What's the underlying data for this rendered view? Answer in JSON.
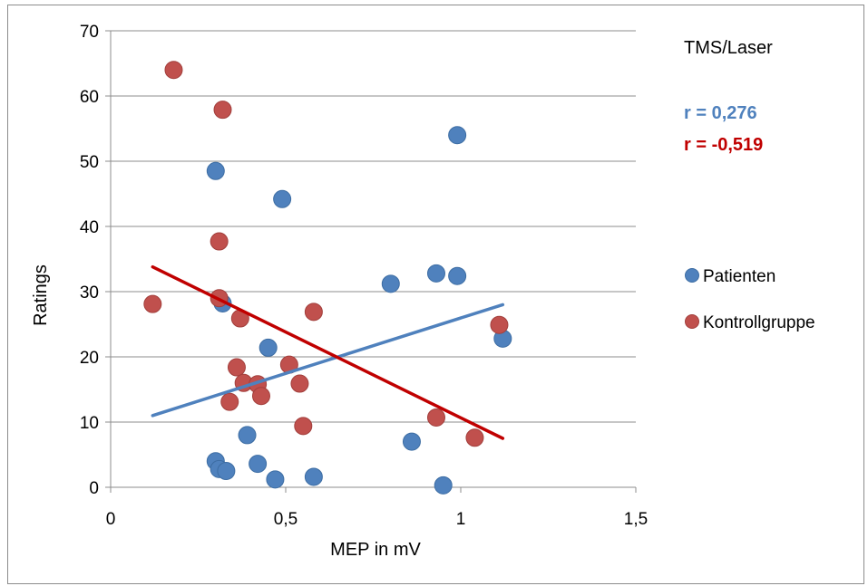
{
  "chart_data": {
    "type": "scatter",
    "title": "TMS/Laser",
    "xlabel": "MEP in mV",
    "ylabel": "Ratings",
    "xlim": [
      0,
      1.5
    ],
    "ylim": [
      0,
      70
    ],
    "x_ticks": [
      "0",
      "0,5",
      "1",
      "1,5"
    ],
    "y_ticks": [
      "0",
      "10",
      "20",
      "30",
      "40",
      "50",
      "60",
      "70"
    ],
    "grid": "horizontal",
    "legend_position": "right",
    "annotations": [
      {
        "text": "r = 0,276",
        "color": "#4f81bd"
      },
      {
        "text": "r = -0,519",
        "color": "#c00000"
      }
    ],
    "series": [
      {
        "name": "Patienten",
        "color": "#4f81bd",
        "trend_color": "#4f81bd",
        "points": [
          [
            0.3,
            48.5
          ],
          [
            0.32,
            28.2
          ],
          [
            0.49,
            44.2
          ],
          [
            0.99,
            54.0
          ],
          [
            0.93,
            32.8
          ],
          [
            0.99,
            32.4
          ],
          [
            0.8,
            31.2
          ],
          [
            1.12,
            22.8
          ],
          [
            0.45,
            21.4
          ],
          [
            0.39,
            8.0
          ],
          [
            0.86,
            7.0
          ],
          [
            0.3,
            4.0
          ],
          [
            0.31,
            2.8
          ],
          [
            0.33,
            2.5
          ],
          [
            0.42,
            3.6
          ],
          [
            0.47,
            1.2
          ],
          [
            0.58,
            1.6
          ],
          [
            0.95,
            0.3
          ]
        ],
        "trendline": [
          [
            0.12,
            11.0
          ],
          [
            1.12,
            28.0
          ]
        ]
      },
      {
        "name": "Kontrollgruppe",
        "color": "#c0504d",
        "trend_color": "#c00000",
        "points": [
          [
            0.18,
            64.0
          ],
          [
            0.32,
            57.9
          ],
          [
            0.31,
            37.7
          ],
          [
            0.12,
            28.1
          ],
          [
            0.31,
            29.0
          ],
          [
            0.37,
            25.9
          ],
          [
            0.58,
            26.9
          ],
          [
            0.36,
            18.4
          ],
          [
            0.38,
            16.0
          ],
          [
            0.42,
            15.8
          ],
          [
            0.43,
            14.0
          ],
          [
            0.34,
            13.1
          ],
          [
            0.51,
            18.8
          ],
          [
            0.54,
            15.9
          ],
          [
            0.55,
            9.4
          ],
          [
            0.93,
            10.7
          ],
          [
            1.04,
            7.6
          ],
          [
            1.11,
            24.9
          ]
        ],
        "trendline": [
          [
            0.12,
            33.8
          ],
          [
            1.12,
            7.5
          ]
        ]
      }
    ]
  }
}
